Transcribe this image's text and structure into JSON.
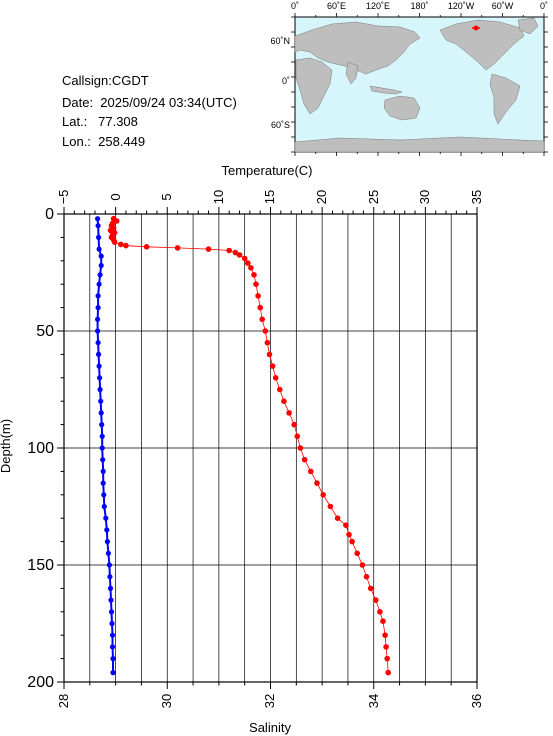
{
  "info": {
    "callsign": "Callsign:CGDT",
    "date": "Date:  2025/09/24 03:34(UTC)",
    "lat": "Lat.:   77.308",
    "lon": "Lon.:  258.449"
  },
  "map": {
    "top_ticks": [
      "0˚",
      "60˚E",
      "120˚E",
      "180˚",
      "120˚W",
      "60˚W",
      "0˚"
    ],
    "left_ticks": [
      "60˚N",
      "0˚",
      "60˚S"
    ],
    "ocean_color": "#d6f6fb",
    "land_color": "#bebebe",
    "marker_color": "#ff0000"
  },
  "chart_data": {
    "type": "line",
    "y_axis": {
      "label": "Depth(m)",
      "range": [
        0,
        200
      ],
      "inverted": true,
      "ticks": [
        "0",
        "50",
        "100",
        "150",
        "200"
      ]
    },
    "top_axis": {
      "label": "Temperature(C)",
      "range": [
        -5,
        35
      ],
      "ticks": [
        "−5",
        "0",
        "5",
        "10",
        "15",
        "20",
        "25",
        "30",
        "35"
      ]
    },
    "bottom_axis": {
      "label": "Salinity",
      "range": [
        28,
        36
      ],
      "ticks": [
        "28",
        "30",
        "32",
        "34",
        "36"
      ]
    },
    "grid": true,
    "series": [
      {
        "axis": "top",
        "color": "#ff0000",
        "points": [
          [
            -0.2,
            2
          ],
          [
            0.1,
            3
          ],
          [
            -0.3,
            4
          ],
          [
            -0.4,
            5
          ],
          [
            -0.2,
            6
          ],
          [
            -0.5,
            7
          ],
          [
            -0.1,
            8
          ],
          [
            -0.3,
            9
          ],
          [
            -0.4,
            10
          ],
          [
            -0.2,
            11
          ],
          [
            -0.1,
            12
          ],
          [
            0.5,
            13
          ],
          [
            1.0,
            13.5
          ],
          [
            3.0,
            14
          ],
          [
            6.0,
            14.5
          ],
          [
            9.0,
            15
          ],
          [
            11.0,
            15.6
          ],
          [
            11.6,
            16.5
          ],
          [
            12.0,
            17.5
          ],
          [
            12.5,
            19
          ],
          [
            12.8,
            21
          ],
          [
            13.1,
            23
          ],
          [
            13.4,
            26
          ],
          [
            13.6,
            30
          ],
          [
            13.8,
            35
          ],
          [
            14.0,
            40
          ],
          [
            14.2,
            45
          ],
          [
            14.5,
            50
          ],
          [
            14.7,
            55
          ],
          [
            14.9,
            60
          ],
          [
            15.2,
            65
          ],
          [
            15.5,
            70
          ],
          [
            15.9,
            75
          ],
          [
            16.3,
            80
          ],
          [
            16.8,
            85
          ],
          [
            17.3,
            90
          ],
          [
            17.6,
            95
          ],
          [
            17.9,
            100
          ],
          [
            18.3,
            105
          ],
          [
            18.9,
            110
          ],
          [
            19.5,
            115
          ],
          [
            20.1,
            120
          ],
          [
            20.8,
            125
          ],
          [
            21.5,
            130
          ],
          [
            22.3,
            133
          ],
          [
            22.6,
            137
          ],
          [
            22.9,
            140
          ],
          [
            23.4,
            145
          ],
          [
            23.9,
            150
          ],
          [
            24.3,
            155
          ],
          [
            24.7,
            160
          ],
          [
            25.2,
            165
          ],
          [
            25.6,
            170
          ],
          [
            25.9,
            174
          ],
          [
            26.1,
            180
          ],
          [
            26.2,
            185
          ],
          [
            26.3,
            190
          ],
          [
            26.4,
            196
          ]
        ]
      },
      {
        "axis": "bottom",
        "color": "#0000ff",
        "points": [
          [
            28.65,
            2
          ],
          [
            28.66,
            5
          ],
          [
            28.67,
            10
          ],
          [
            28.68,
            15
          ],
          [
            28.72,
            18
          ],
          [
            28.72,
            22
          ],
          [
            28.7,
            26
          ],
          [
            28.68,
            30
          ],
          [
            28.66,
            35
          ],
          [
            28.66,
            40
          ],
          [
            28.65,
            45
          ],
          [
            28.65,
            50
          ],
          [
            28.66,
            55
          ],
          [
            28.67,
            60
          ],
          [
            28.68,
            65
          ],
          [
            28.69,
            70
          ],
          [
            28.7,
            75
          ],
          [
            28.71,
            80
          ],
          [
            28.72,
            85
          ],
          [
            28.73,
            90
          ],
          [
            28.74,
            95
          ],
          [
            28.74,
            100
          ],
          [
            28.75,
            105
          ],
          [
            28.76,
            110
          ],
          [
            28.76,
            115
          ],
          [
            28.77,
            120
          ],
          [
            28.78,
            125
          ],
          [
            28.81,
            130
          ],
          [
            28.83,
            135
          ],
          [
            28.84,
            140
          ],
          [
            28.86,
            145
          ],
          [
            28.88,
            150
          ],
          [
            28.89,
            155
          ],
          [
            28.9,
            160
          ],
          [
            28.91,
            165
          ],
          [
            28.92,
            170
          ],
          [
            28.93,
            175
          ],
          [
            28.94,
            180
          ],
          [
            28.94,
            185
          ],
          [
            28.95,
            190
          ],
          [
            28.95,
            196
          ]
        ]
      }
    ]
  }
}
